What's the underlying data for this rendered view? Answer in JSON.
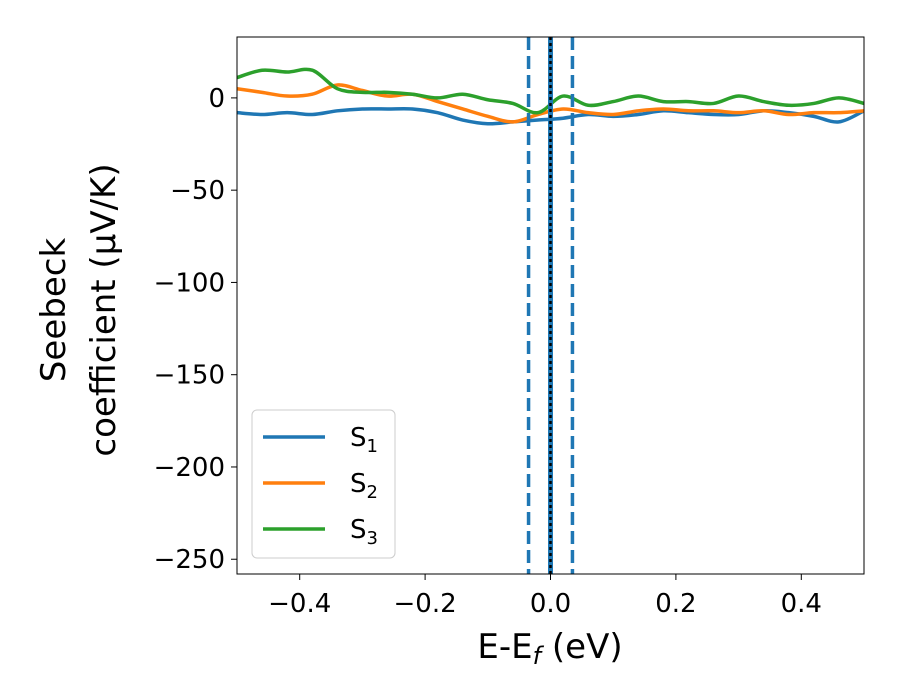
{
  "chart_data": {
    "type": "line",
    "xlabel": "E-E",
    "xlabel_sub": "f",
    "xlabel_unit": " (eV)",
    "ylabel_line1": "Seebeck",
    "ylabel_line2": "coefficient  (μV/K)",
    "xlim": [
      -0.5,
      0.5
    ],
    "ylim": [
      -258,
      33
    ],
    "xticks": [
      -0.4,
      -0.2,
      0.0,
      0.2,
      0.4
    ],
    "xtick_labels": [
      "−0.4",
      "−0.2",
      "0.0",
      "0.2",
      "0.4"
    ],
    "yticks": [
      0,
      -50,
      -100,
      -150,
      -200,
      -250
    ],
    "ytick_labels": [
      "0",
      "−50",
      "−100",
      "−150",
      "−200",
      "−250"
    ],
    "grid": false,
    "legend_position": "lower-left",
    "vlines": [
      {
        "x": -0.035,
        "style": "dashed",
        "color": "#1f77b4"
      },
      {
        "x": 0.035,
        "style": "dashed",
        "color": "#1f77b4"
      },
      {
        "x": 0.0,
        "style": "solid",
        "color": "#1f77b4"
      },
      {
        "x": 0.0,
        "style": "dotted",
        "color": "#000000"
      }
    ],
    "series": [
      {
        "name": "S",
        "sub": "1",
        "color": "#1f77b4",
        "x": [
          -0.5,
          -0.46,
          -0.42,
          -0.38,
          -0.34,
          -0.3,
          -0.26,
          -0.22,
          -0.18,
          -0.14,
          -0.1,
          -0.06,
          -0.02,
          0.02,
          0.06,
          0.1,
          0.14,
          0.18,
          0.22,
          0.26,
          0.3,
          0.34,
          0.38,
          0.42,
          0.46,
          0.5
        ],
        "values": [
          -8,
          -9,
          -8,
          -9,
          -7,
          -6,
          -6,
          -6,
          -8,
          -12,
          -14,
          -13,
          -12,
          -11,
          -9,
          -10,
          -9,
          -7,
          -8,
          -9,
          -9,
          -7,
          -8,
          -10,
          -13,
          -7
        ]
      },
      {
        "name": "S",
        "sub": "2",
        "color": "#ff7f0e",
        "x": [
          -0.5,
          -0.46,
          -0.42,
          -0.38,
          -0.34,
          -0.3,
          -0.26,
          -0.22,
          -0.18,
          -0.14,
          -0.1,
          -0.06,
          -0.02,
          0.02,
          0.06,
          0.1,
          0.14,
          0.18,
          0.22,
          0.26,
          0.3,
          0.34,
          0.38,
          0.42,
          0.46,
          0.5
        ],
        "values": [
          5,
          3,
          1,
          2,
          7,
          4,
          1,
          2,
          -2,
          -6,
          -10,
          -13,
          -9,
          -6,
          -8,
          -9,
          -7,
          -6,
          -7,
          -7,
          -8,
          -7,
          -9,
          -8,
          -8,
          -7
        ]
      },
      {
        "name": "S",
        "sub": "3",
        "color": "#2ca02c",
        "x": [
          -0.5,
          -0.46,
          -0.42,
          -0.38,
          -0.34,
          -0.3,
          -0.26,
          -0.22,
          -0.18,
          -0.14,
          -0.1,
          -0.06,
          -0.02,
          0.02,
          0.06,
          0.1,
          0.14,
          0.18,
          0.22,
          0.26,
          0.3,
          0.34,
          0.38,
          0.42,
          0.46,
          0.5
        ],
        "values": [
          11,
          15,
          14,
          15,
          5,
          3,
          3,
          2,
          0,
          2,
          -1,
          -3,
          -8,
          1,
          -4,
          -2,
          1,
          -2,
          -2,
          -3,
          1,
          -2,
          -4,
          -3,
          0,
          -3
        ]
      }
    ]
  }
}
